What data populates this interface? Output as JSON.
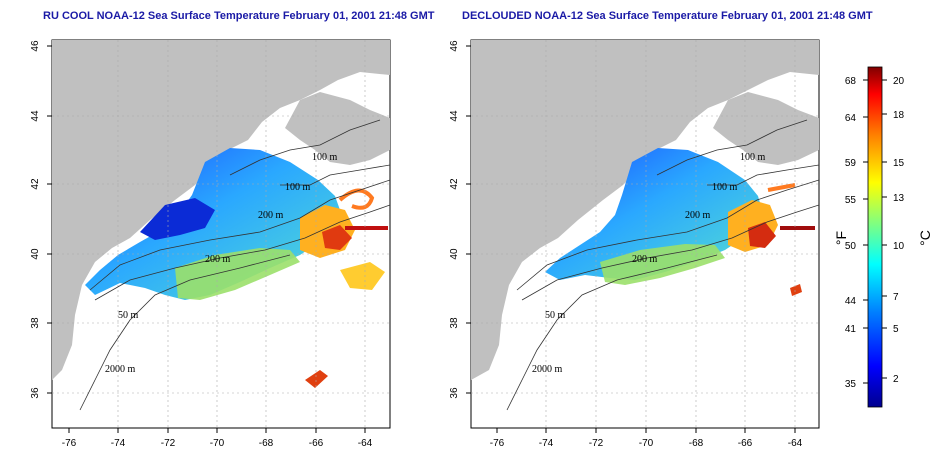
{
  "titles": {
    "left": "RU COOL NOAA-12 Sea Surface Temperature February 01, 2001 21:48 GMT",
    "right": "DECLOUDED NOAA-12 Sea Surface Temperature February 01, 2001 21:48 GMT"
  },
  "axes": {
    "x_ticks": [
      "-76",
      "-74",
      "-72",
      "-70",
      "-68",
      "-66",
      "-64"
    ],
    "y_ticks": [
      "46",
      "44",
      "42",
      "40",
      "38",
      "36"
    ]
  },
  "contours": {
    "left": [
      "100 m",
      "100 m",
      "200 m",
      "200 m",
      "50 m",
      "2000 m"
    ],
    "right": [
      "100 m",
      "100 m",
      "200 m",
      "200 m",
      "50 m",
      "2000 m"
    ]
  },
  "colorbar": {
    "fahrenheit_ticks": [
      "68",
      "64",
      "59",
      "55",
      "50",
      "44",
      "41",
      "35"
    ],
    "celsius_ticks": [
      "20",
      "18",
      "15",
      "13",
      "10",
      "7",
      "5",
      "2"
    ],
    "fahrenheit_label": "°F",
    "celsius_label": "°C",
    "colors": [
      "#00008f",
      "#0000ff",
      "#0080ff",
      "#00ffff",
      "#80ff80",
      "#ffff00",
      "#ff8000",
      "#ff0000",
      "#800000"
    ]
  },
  "colors": {
    "land": "#c0c0c0",
    "water": "#ffffff",
    "title": "#1a1aa6",
    "grid": "#aaaaaa"
  }
}
